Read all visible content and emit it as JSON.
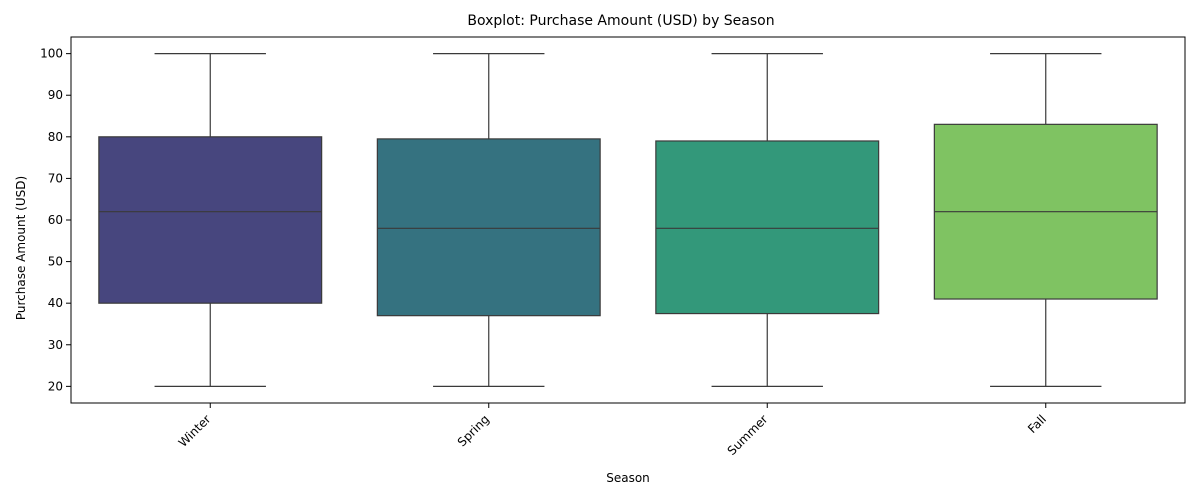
{
  "chart_data": {
    "type": "boxplot",
    "title": "Boxplot: Purchase Amount (USD) by Season",
    "xlabel": "Season",
    "ylabel": "Purchase Amount (USD)",
    "ylim": [
      16,
      104
    ],
    "yticks": [
      20,
      30,
      40,
      50,
      60,
      70,
      80,
      90,
      100
    ],
    "grid": false,
    "categories": [
      "Winter",
      "Spring",
      "Summer",
      "Fall"
    ],
    "boxes": [
      {
        "category": "Winter",
        "min": 20,
        "q1": 40,
        "median": 62,
        "q3": 80,
        "max": 100,
        "color": "#47467e"
      },
      {
        "category": "Spring",
        "min": 20,
        "q1": 37,
        "median": 58,
        "q3": 79.5,
        "max": 100,
        "color": "#357280"
      },
      {
        "category": "Summer",
        "min": 20,
        "q1": 37.5,
        "median": 58,
        "q3": 79,
        "max": 100,
        "color": "#33987a"
      },
      {
        "category": "Fall",
        "min": 20,
        "q1": 41,
        "median": 62,
        "q3": 83,
        "max": 100,
        "color": "#7fc362"
      }
    ]
  }
}
